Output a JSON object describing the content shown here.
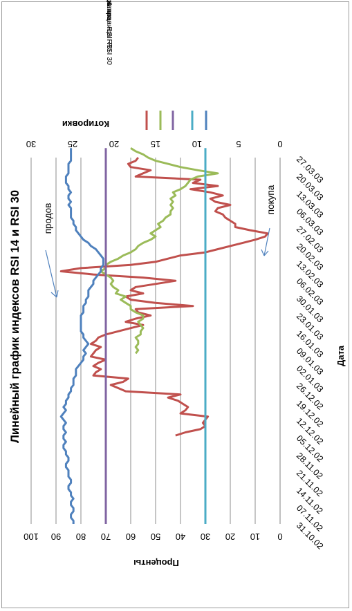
{
  "chart_data": {
    "type": "line",
    "orientation": "rotated 90° clockwise",
    "title": "Линейный график индексов RSI 14 и RSI 30",
    "xlabel": "Дата",
    "ylabel_left": "Проценты",
    "ylabel_right": "Котировки",
    "ylim_left": [
      0,
      100
    ],
    "yticks_left": [
      "0",
      "10",
      "20",
      "30",
      "40",
      "50",
      "60",
      "70",
      "80",
      "90",
      "100"
    ],
    "ylim_right": [
      0,
      30
    ],
    "yticks_right": [
      "0",
      "5",
      "10",
      "15",
      "20",
      "25",
      "30"
    ],
    "grid": true,
    "legend_position": "top",
    "x_labels": [
      "31.10.02",
      "07.11.02",
      "14.11.02",
      "21.11.02",
      "28.11.02",
      "05.12.02",
      "12.12.02",
      "19.12.02",
      "26.12.02",
      "02.01.03",
      "09.01.03",
      "16.01.03",
      "23.01.03",
      "30.01.03",
      "06.02.03",
      "13.02.03",
      "20.02.03",
      "27.02.03",
      "06.03.03",
      "13.03.03",
      "20.03.03",
      "27.03.03"
    ],
    "series": [
      {
        "name": "RSI 30",
        "color": "#c0504d",
        "values": [
          null,
          null,
          null,
          null,
          null,
          null,
          null,
          null,
          null,
          null,
          null,
          null,
          null,
          null,
          null,
          null,
          null,
          null,
          null,
          null,
          null,
          null,
          null,
          null,
          null,
          null,
          null,
          null,
          42,
          38,
          32,
          30,
          31,
          30,
          29,
          40,
          38,
          37,
          39,
          41,
          45,
          40,
          62,
          65,
          68,
          63,
          61,
          75,
          74,
          72,
          75,
          73,
          70,
          76,
          75,
          74,
          72,
          76,
          74,
          73,
          70,
          65,
          60,
          55,
          62,
          58,
          52,
          57,
          58,
          35,
          50,
          60,
          62,
          55,
          60,
          58,
          50,
          42,
          55,
          75,
          88,
          80,
          60,
          50,
          45,
          40,
          30,
          25,
          20,
          15,
          10,
          6,
          5,
          12,
          18,
          18,
          20,
          22,
          23,
          26,
          25,
          20,
          26,
          28,
          23,
          28,
          36,
          25,
          35,
          32,
          58,
          55,
          52,
          60,
          61,
          58,
          57
        ]
      },
      {
        "name": "Верхняя граница RSI",
        "color": "#9bbb59",
        "values": [
          null,
          null,
          null,
          null,
          null,
          null,
          null,
          null,
          null,
          null,
          null,
          null,
          null,
          null,
          null,
          null,
          null,
          null,
          null,
          null,
          null,
          null,
          null,
          null,
          null,
          null,
          null,
          null,
          null,
          null,
          null,
          null,
          null,
          null,
          null,
          null,
          null,
          null,
          null,
          null,
          null,
          null,
          null,
          null,
          null,
          null,
          null,
          null,
          null,
          null,
          null,
          null,
          null,
          null,
          58,
          57,
          58,
          57,
          57,
          58,
          56,
          56,
          55,
          56,
          57,
          55,
          55,
          58,
          60,
          60,
          62,
          64,
          62,
          66,
          65,
          67,
          68,
          67,
          68,
          70,
          72,
          70,
          70,
          68,
          65,
          63,
          60,
          58,
          57,
          55,
          52,
          50,
          52,
          50,
          48,
          49,
          47,
          46,
          44,
          44,
          43,
          44,
          43,
          44,
          42,
          43,
          40,
          38,
          37,
          36,
          33,
          25,
          33,
          40,
          45,
          50,
          53,
          55,
          58,
          60
        ]
      },
      {
        "name": "Нижняя граница RSI",
        "color": "#8064a2",
        "values": [
          70,
          70,
          70,
          70,
          70,
          70,
          70,
          70,
          70,
          70,
          70,
          70,
          70,
          70,
          70,
          70,
          70,
          70,
          70,
          70,
          70,
          70,
          70,
          70,
          70,
          70,
          70,
          70,
          70,
          70,
          70,
          70,
          70,
          70,
          70,
          70,
          70,
          70,
          70,
          70,
          70,
          70,
          70,
          70,
          70,
          70,
          70,
          70,
          70,
          70,
          70,
          70,
          70,
          70,
          70,
          70,
          70,
          70,
          70,
          70,
          70,
          70,
          70,
          70,
          70,
          70,
          70,
          70,
          70,
          70,
          70,
          70,
          70,
          70,
          70,
          70,
          70,
          70,
          70,
          70,
          70,
          70,
          70,
          70,
          70,
          70,
          70,
          70,
          70,
          70,
          70,
          70,
          70,
          70,
          70,
          70,
          70,
          70,
          70,
          70,
          70,
          70,
          70,
          70,
          70,
          70,
          70,
          70,
          70,
          70,
          70,
          70,
          70,
          70,
          70,
          70,
          70,
          70,
          70,
          70
        ]
      },
      {
        "name": "Цена закрытия",
        "color": "#4bacc6",
        "values": [
          30,
          30,
          30,
          30,
          30,
          30,
          30,
          30,
          30,
          30,
          30,
          30,
          30,
          30,
          30,
          30,
          30,
          30,
          30,
          30,
          30,
          30,
          30,
          30,
          30,
          30,
          30,
          30,
          30,
          30,
          30,
          30,
          30,
          30,
          30,
          30,
          30,
          30,
          30,
          30,
          30,
          30,
          30,
          30,
          30,
          30,
          30,
          30,
          30,
          30,
          30,
          30,
          30,
          30,
          30,
          30,
          30,
          30,
          30,
          30,
          30,
          30,
          30,
          30,
          30,
          30,
          30,
          30,
          30,
          30,
          30,
          30,
          30,
          30,
          30,
          30,
          30,
          30,
          30,
          30,
          30,
          30,
          30,
          30,
          30,
          30,
          30,
          30,
          30,
          30,
          30,
          30,
          30,
          30,
          30,
          30,
          30,
          30,
          30,
          30,
          30,
          30,
          30,
          30,
          30,
          30,
          30,
          30,
          30,
          30,
          30,
          30,
          30,
          30,
          30,
          30,
          30,
          30,
          30,
          30
        ]
      },
      {
        "name": "RSI14",
        "color": "#4f81bd",
        "values": [
          83,
          83,
          84,
          84,
          83,
          83,
          84,
          84,
          83,
          84,
          84,
          85,
          85,
          84,
          84,
          85,
          85,
          85,
          86,
          86,
          85,
          85,
          86,
          86,
          87,
          87,
          86,
          87,
          87,
          86,
          87,
          87,
          86,
          87,
          88,
          87,
          86,
          87,
          86,
          86,
          85,
          85,
          84,
          84,
          83,
          83,
          83,
          82,
          82,
          82,
          81,
          80,
          79,
          79,
          78,
          79,
          78,
          77,
          78,
          79,
          79,
          80,
          80,
          80,
          80,
          80,
          80,
          79,
          79,
          79,
          78,
          78,
          77,
          77,
          77,
          76,
          75,
          75,
          74,
          73,
          72,
          72,
          71,
          71,
          71,
          72,
          73,
          74,
          76,
          77,
          79,
          80,
          81,
          82,
          82,
          83,
          83,
          84,
          84,
          84,
          84,
          85,
          84,
          85,
          85,
          84,
          85,
          85,
          86,
          86,
          86,
          85,
          85,
          85,
          85,
          84,
          84,
          84,
          84,
          84
        ]
      }
    ],
    "annotations": [
      {
        "text": "продов",
        "target": "RSI 30 peak ~88"
      },
      {
        "text": "покупа",
        "target": "RSI 30 low ~5"
      }
    ]
  }
}
